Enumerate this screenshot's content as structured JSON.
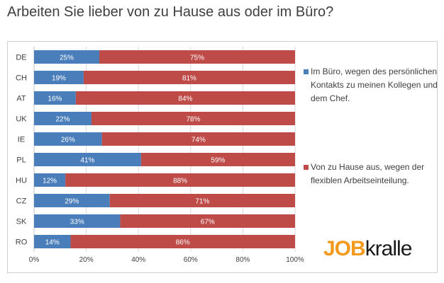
{
  "chart_data": {
    "type": "bar",
    "stacked": true,
    "orientation": "horizontal",
    "title": "Arbeiten Sie lieber von zu Hause aus oder im Büro?",
    "categories": [
      "DE",
      "CH",
      "AT",
      "UK",
      "IE",
      "PL",
      "HU",
      "CZ",
      "SK",
      "RO"
    ],
    "series": [
      {
        "name": "Im Büro, wegen des persönlichen Kontakts zu meinen Kollegen und dem Chef.",
        "color": "#4a7ebb",
        "values": [
          25,
          19,
          16,
          22,
          26,
          41,
          12,
          29,
          33,
          14
        ]
      },
      {
        "name": "Von zu Hause aus, wegen der flexiblen Arbeitseinteilung.",
        "color": "#be4b48",
        "values": [
          75,
          81,
          84,
          78,
          74,
          59,
          88,
          71,
          67,
          86
        ]
      }
    ],
    "xlim": [
      0,
      100
    ],
    "xticks": [
      "0%",
      "20%",
      "40%",
      "60%",
      "80%",
      "100%"
    ],
    "grid": true,
    "legend": "right"
  },
  "logo": {
    "part1": "JOB",
    "part2": "kralle"
  }
}
